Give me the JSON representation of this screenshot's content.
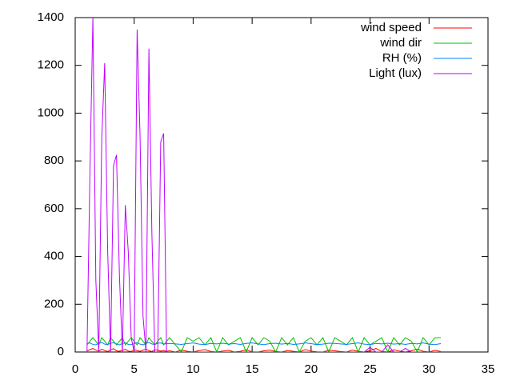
{
  "chart_data": {
    "type": "line",
    "x": [
      1,
      1.25,
      1.5,
      1.75,
      2,
      2.25,
      2.5,
      2.75,
      3,
      3.25,
      3.5,
      3.75,
      4,
      4.25,
      4.5,
      4.75,
      5,
      5.25,
      5.5,
      5.75,
      6,
      6.25,
      6.5,
      6.75,
      7,
      7.25,
      7.5,
      7.75,
      8,
      8.5,
      9,
      9.5,
      10,
      10.5,
      11,
      11.5,
      12,
      12.5,
      13,
      13.5,
      14,
      14.5,
      15,
      15.5,
      16,
      16.5,
      17,
      17.5,
      18,
      18.5,
      19,
      19.5,
      20,
      20.5,
      21,
      21.5,
      22,
      22.5,
      23,
      23.5,
      24,
      24.5,
      25,
      25.5,
      26,
      26.5,
      27,
      27.5,
      28,
      28.5,
      29,
      29.5,
      30,
      30.5,
      31
    ],
    "series": [
      {
        "name": "wind speed",
        "color": "#ff0000",
        "values": [
          5,
          10,
          15,
          8,
          3,
          12,
          6,
          2,
          9,
          14,
          5,
          3,
          7,
          11,
          4,
          2,
          10,
          6,
          3,
          8,
          12,
          5,
          2,
          9,
          7,
          4,
          6,
          3,
          5,
          0,
          8,
          3,
          0,
          6,
          10,
          2,
          0,
          4,
          7,
          0,
          3,
          9,
          1,
          0,
          5,
          8,
          2,
          0,
          6,
          3,
          0,
          10,
          4,
          1,
          0,
          7,
          5,
          2,
          0,
          8,
          3,
          0,
          6,
          15,
          2,
          0,
          9,
          4,
          0,
          5,
          12,
          3,
          0,
          7,
          2
        ]
      },
      {
        "name": "wind dir",
        "color": "#00c000",
        "values": [
          30,
          45,
          60,
          45,
          30,
          60,
          45,
          30,
          60,
          45,
          30,
          45,
          60,
          30,
          45,
          60,
          45,
          30,
          60,
          45,
          30,
          60,
          45,
          30,
          45,
          60,
          30,
          45,
          60,
          30,
          0,
          60,
          45,
          60,
          30,
          60,
          0,
          60,
          30,
          45,
          60,
          0,
          60,
          30,
          60,
          45,
          0,
          60,
          30,
          60,
          0,
          45,
          60,
          30,
          60,
          0,
          60,
          45,
          30,
          60,
          0,
          60,
          30,
          45,
          60,
          0,
          60,
          30,
          60,
          45,
          0,
          60,
          30,
          60,
          60
        ]
      },
      {
        "name": "RH (%)",
        "color": "#0080ff",
        "values": [
          35,
          38,
          32,
          30,
          36,
          40,
          33,
          31,
          37,
          39,
          34,
          30,
          36,
          38,
          32,
          31,
          35,
          39,
          33,
          30,
          36,
          40,
          34,
          31,
          37,
          38,
          33,
          35,
          36,
          34,
          32,
          35,
          38,
          33,
          31,
          36,
          34,
          37,
          33,
          35,
          32,
          36,
          38,
          34,
          31,
          35,
          37,
          33,
          36,
          32,
          34,
          38,
          35,
          31,
          33,
          37,
          36,
          34,
          32,
          35,
          38,
          33,
          31,
          36,
          34,
          37,
          33,
          35,
          32,
          36,
          34,
          38,
          33,
          31,
          35
        ]
      },
      {
        "name": "Light (lux)",
        "color": "#c000ff",
        "values": [
          0,
          750,
          1400,
          300,
          0,
          890,
          1210,
          430,
          0,
          780,
          825,
          320,
          0,
          615,
          420,
          60,
          0,
          1350,
          900,
          150,
          0,
          1270,
          500,
          0,
          0,
          880,
          915,
          0,
          0,
          0,
          0,
          0,
          0,
          0,
          0,
          0,
          0,
          0,
          0,
          0,
          0,
          0,
          0,
          0,
          0,
          0,
          0,
          0,
          0,
          0,
          0,
          0,
          0,
          0,
          0,
          0,
          0,
          0,
          0,
          0,
          0,
          0,
          20,
          0,
          0,
          30,
          0,
          0,
          15,
          0,
          0,
          0,
          0,
          0,
          0
        ]
      }
    ],
    "xlim": [
      0,
      35
    ],
    "xticks": [
      0,
      5,
      10,
      15,
      20,
      25,
      30,
      35
    ],
    "ylim": [
      0,
      1400
    ],
    "yticks": [
      0,
      200,
      400,
      600,
      800,
      1000,
      1200,
      1400
    ],
    "grid": false,
    "legend": "top-right"
  }
}
